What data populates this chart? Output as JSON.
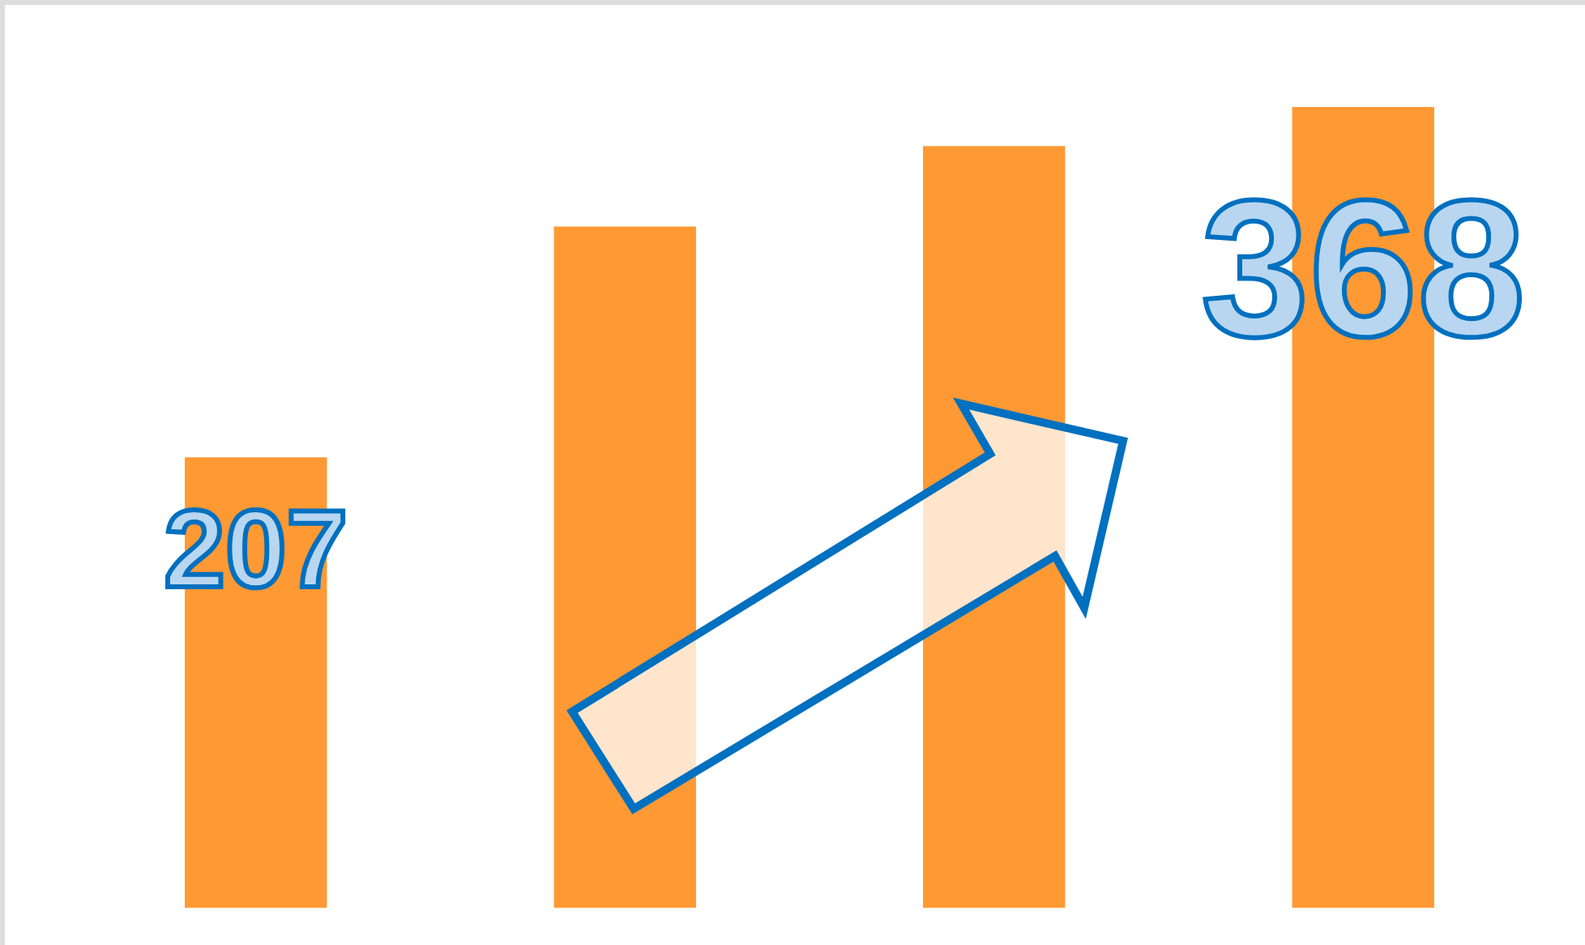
{
  "chart_data": {
    "type": "bar",
    "categories": [
      null,
      null,
      null,
      null
    ],
    "values": [
      207,
      313,
      350,
      368
    ],
    "color": "#ff9933",
    "value_labels": [
      "207",
      null,
      null,
      "368"
    ],
    "legend": false
  }
}
